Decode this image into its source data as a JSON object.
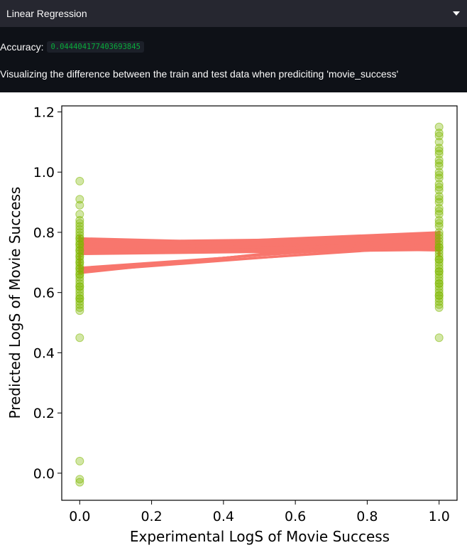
{
  "expander": {
    "title": "Linear Regression",
    "icon": "chevron-down-icon"
  },
  "accuracy": {
    "label": "Accuracy:",
    "value": "0.044404177403693845"
  },
  "description": "Visualizing the difference between the train and test data when prediciting 'movie_success'",
  "colors": {
    "points": "#7fb800",
    "lines": "#f8766d",
    "background": "#0e1117",
    "code": "#09ab3b"
  },
  "chart_data": {
    "type": "scatter",
    "xlabel": "Experimental LogS of Movie Success",
    "ylabel": "Predicted LogS of Movie Success",
    "xlim": [
      -0.05,
      1.05
    ],
    "ylim": [
      -0.09,
      1.22
    ],
    "xticks": [
      "0.0",
      "0.2",
      "0.4",
      "0.6",
      "0.8",
      "1.0"
    ],
    "yticks": [
      "0.0",
      "0.2",
      "0.4",
      "0.6",
      "0.8",
      "1.0",
      "1.2"
    ],
    "grid": false,
    "series": [
      {
        "kind": "points",
        "x": [
          0,
          0,
          0,
          0,
          0,
          0,
          0,
          0,
          0,
          0,
          0,
          0,
          0,
          0,
          0,
          0,
          0,
          0,
          0,
          0,
          0,
          0,
          0,
          0,
          0,
          0,
          0,
          0,
          0,
          0,
          0,
          0,
          0,
          0,
          0,
          0,
          0,
          0,
          0,
          0,
          0,
          0,
          0,
          0,
          0,
          0,
          0,
          0,
          1,
          1,
          1,
          1,
          1,
          1,
          1,
          1,
          1,
          1,
          1,
          1,
          1,
          1,
          1,
          1,
          1,
          1,
          1,
          1,
          1,
          1,
          1,
          1,
          1,
          1,
          1,
          1,
          1,
          1,
          1,
          1,
          1,
          1,
          1,
          1,
          1,
          1,
          1,
          1,
          1,
          1,
          1,
          1,
          1,
          1,
          1,
          1,
          1,
          1,
          1,
          1,
          1,
          1,
          1,
          1,
          1
        ],
        "y": [
          0.97,
          0.91,
          0.89,
          0.86,
          0.84,
          0.83,
          0.82,
          0.81,
          0.8,
          0.79,
          0.78,
          0.77,
          0.76,
          0.75,
          0.74,
          0.73,
          0.72,
          0.71,
          0.7,
          0.69,
          0.68,
          0.67,
          0.66,
          0.65,
          0.64,
          0.63,
          0.62,
          0.61,
          0.6,
          0.59,
          0.58,
          0.57,
          0.56,
          0.55,
          0.54,
          0.45,
          0.04,
          -0.02,
          -0.03,
          0.72,
          0.74,
          0.7,
          0.68,
          0.76,
          0.78,
          0.66,
          0.62,
          0.58,
          1.15,
          1.13,
          1.1,
          1.08,
          1.06,
          1.04,
          1.02,
          1.0,
          0.98,
          0.96,
          0.94,
          0.92,
          0.9,
          0.88,
          0.86,
          0.84,
          0.82,
          0.8,
          0.79,
          0.78,
          0.77,
          0.76,
          0.75,
          0.74,
          0.73,
          0.72,
          0.71,
          0.7,
          0.69,
          0.68,
          0.67,
          0.66,
          0.65,
          0.64,
          0.63,
          0.62,
          0.61,
          0.6,
          0.59,
          0.58,
          0.57,
          0.56,
          0.55,
          0.45,
          1.12,
          1.07,
          1.03,
          0.99,
          0.95,
          0.91,
          0.87,
          0.83,
          0.75,
          0.71,
          0.67,
          0.63,
          0.59
        ]
      },
      {
        "kind": "lines",
        "segments": [
          [
            0.73,
            0.78
          ],
          [
            0.735,
            0.785
          ],
          [
            0.74,
            0.79
          ],
          [
            0.745,
            0.795
          ],
          [
            0.75,
            0.8
          ],
          [
            0.755,
            0.775
          ],
          [
            0.76,
            0.77
          ],
          [
            0.765,
            0.765
          ],
          [
            0.77,
            0.76
          ],
          [
            0.775,
            0.755
          ],
          [
            0.78,
            0.75
          ],
          [
            0.728,
            0.742
          ],
          [
            0.732,
            0.748
          ],
          [
            0.738,
            0.752
          ],
          [
            0.742,
            0.758
          ],
          [
            0.748,
            0.762
          ],
          [
            0.752,
            0.768
          ],
          [
            0.758,
            0.772
          ],
          [
            0.762,
            0.778
          ],
          [
            0.768,
            0.782
          ],
          [
            0.74,
            0.76
          ],
          [
            0.745,
            0.755
          ],
          [
            0.75,
            0.75
          ],
          [
            0.755,
            0.745
          ],
          [
            0.76,
            0.74
          ],
          [
            0.665,
            0.79
          ],
          [
            0.668,
            0.785
          ],
          [
            0.672,
            0.78
          ],
          [
            0.675,
            0.775
          ],
          [
            0.678,
            0.77
          ],
          [
            0.682,
            0.765
          ],
          [
            0.67,
            0.76
          ],
          [
            0.676,
            0.755
          ]
        ]
      }
    ]
  }
}
